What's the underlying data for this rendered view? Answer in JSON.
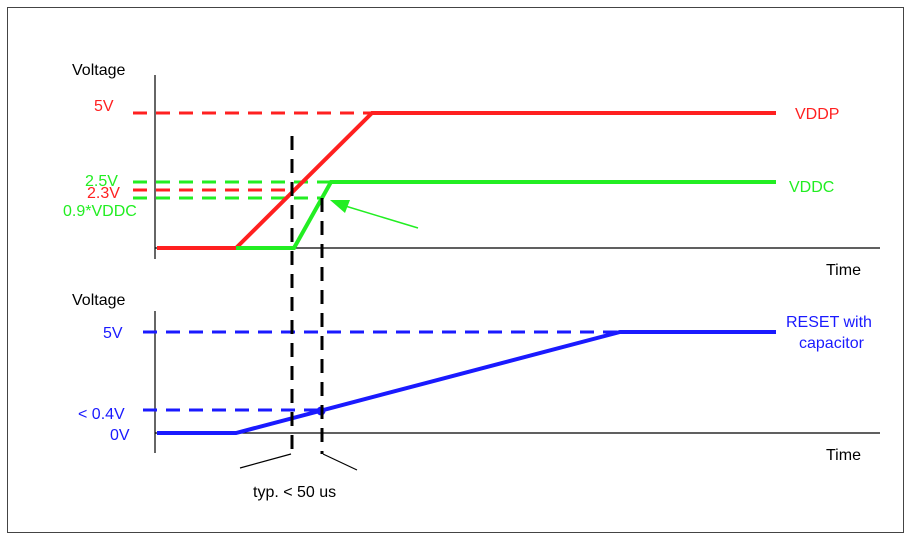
{
  "colors": {
    "vddp": "#ff2020",
    "vddc": "#22ee22",
    "reset": "#1a1aff",
    "axis": "#000000",
    "guide": "#000000"
  },
  "upper_plot": {
    "y_axis_label": "Voltage",
    "x_axis_label": "Time",
    "levels": {
      "vddp_5v": "5V",
      "vddc_2_5v": "2.5V",
      "vddp_2_3v": "2.3V",
      "vddc_0_9": "0.9*VDDC"
    },
    "series": [
      {
        "name": "VDDP"
      },
      {
        "name": "VDDC"
      }
    ]
  },
  "lower_plot": {
    "y_axis_label": "Voltage",
    "x_axis_label": "Time",
    "levels": {
      "reset_5v": "5V",
      "reset_low": "< 0.4V",
      "zero": "0V"
    },
    "series": [
      {
        "name_line1": "RESET with",
        "name_line2": "capacitor"
      }
    ]
  },
  "timing_annotation": "typ. < 50 us"
}
